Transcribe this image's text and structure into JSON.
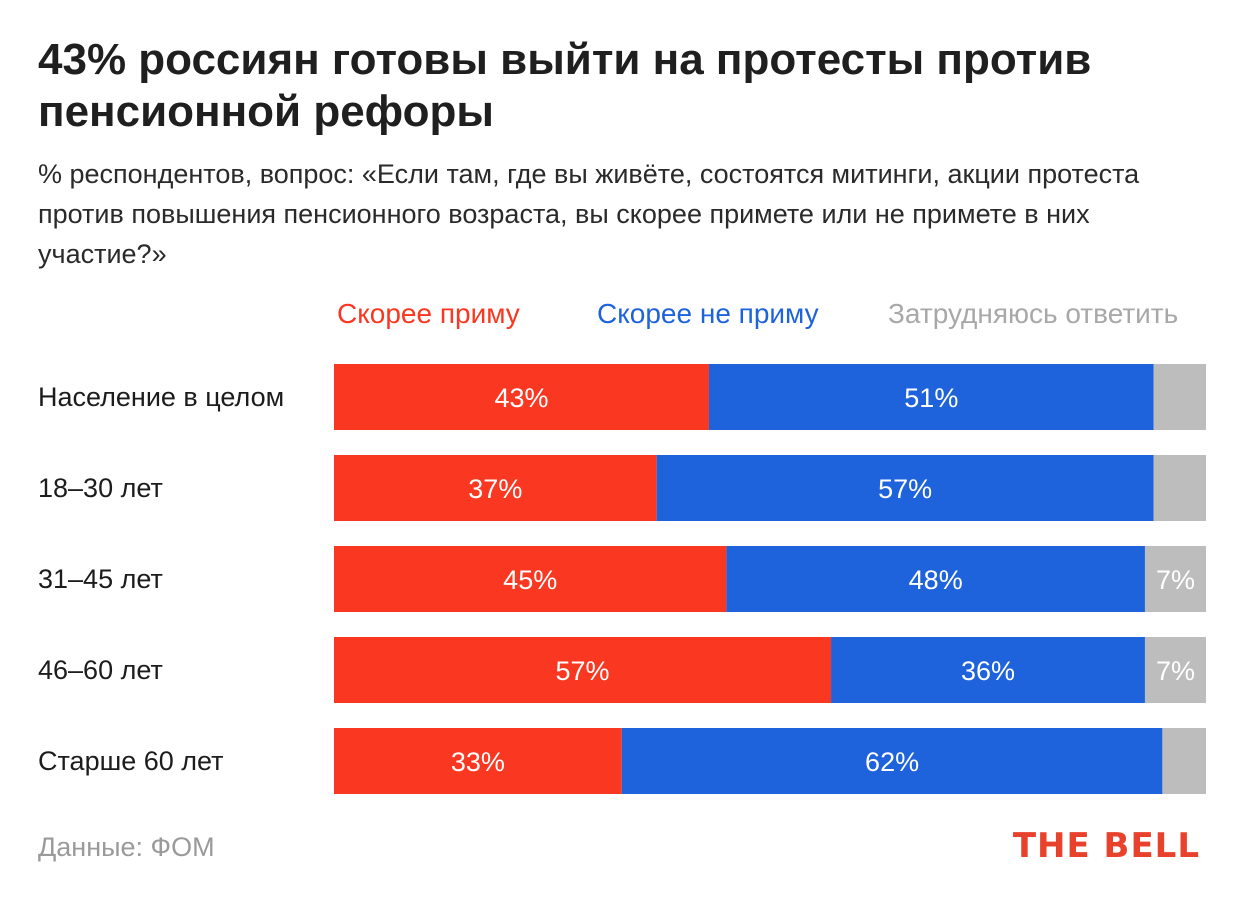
{
  "header": {
    "title": "43% россиян готовы выйти на протесты против пенсионной рефоры",
    "subtitle": "% респондентов, вопрос: «Если там, где вы живёте, состоятся митинги, акции протеста против повышения пенсионного возраста, вы скорее примете или не примете в них участие?»"
  },
  "chart_data": {
    "type": "bar",
    "orientation": "horizontal",
    "stacked": true,
    "title": "43% россиян готовы выйти на протесты против пенсионной рефоры",
    "categories": [
      "Население в целом",
      "18–30 лет",
      "31–45 лет",
      "46–60 лет",
      "Старше 60 лет"
    ],
    "series": [
      {
        "name": "Скорее приму",
        "color": "#fa3720",
        "values": [
          43,
          37,
          45,
          57,
          33
        ],
        "labels": [
          "43%",
          "37%",
          "45%",
          "57%",
          "33%"
        ]
      },
      {
        "name": "Скорее не приму",
        "color": "#1f63dc",
        "values": [
          51,
          57,
          48,
          36,
          62
        ],
        "labels": [
          "51%",
          "57%",
          "48%",
          "36%",
          "62%"
        ]
      },
      {
        "name": "Затрудняюсь ответить",
        "color": "#bdbdbd",
        "values": [
          6,
          6,
          7,
          7,
          5
        ],
        "labels": [
          "",
          "",
          "7%",
          "7%",
          ""
        ]
      }
    ],
    "xlim": [
      0,
      100
    ],
    "legend_position": "top",
    "grid": false
  },
  "footer": {
    "source": "Данные: ФОМ",
    "brand": "THE BELL"
  }
}
